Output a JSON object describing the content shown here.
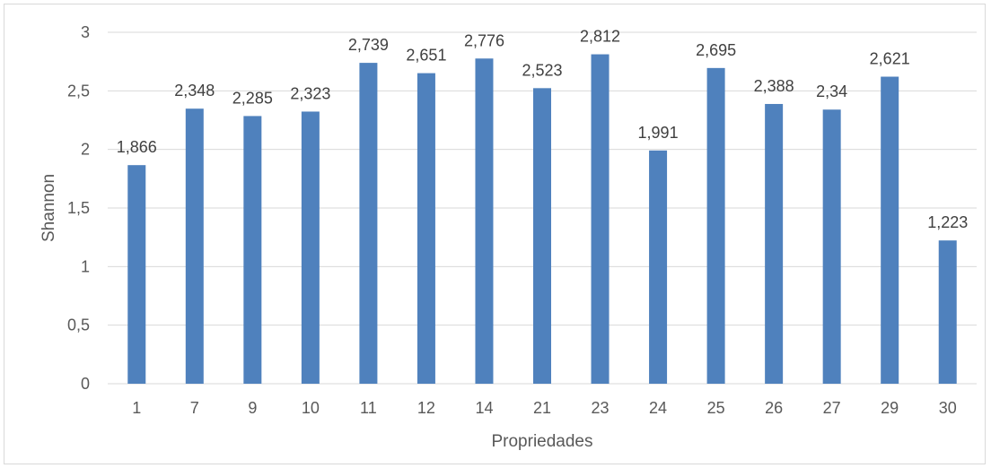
{
  "chart_data": {
    "type": "bar",
    "categories": [
      "1",
      "7",
      "9",
      "10",
      "11",
      "12",
      "14",
      "21",
      "23",
      "24",
      "25",
      "26",
      "27",
      "29",
      "30"
    ],
    "series": [
      {
        "values": [
          1.866,
          2.348,
          2.285,
          2.323,
          2.739,
          2.651,
          2.776,
          2.523,
          2.812,
          1.991,
          2.695,
          2.388,
          2.34,
          2.621,
          1.223
        ],
        "labels": [
          "1,866",
          "2,348",
          "2,285",
          "2,323",
          "2,739",
          "2,651",
          "2,776",
          "2,523",
          "2,812",
          "1,991",
          "2,695",
          "2,388",
          "2,34",
          "2,621",
          "1,223"
        ],
        "color": "#4f81bd"
      }
    ],
    "xlabel": "Propriedades",
    "ylabel": "Shannon",
    "ylim": [
      0,
      3
    ],
    "yticks": [
      {
        "value": 0,
        "label": "0"
      },
      {
        "value": 0.5,
        "label": "0,5"
      },
      {
        "value": 1,
        "label": "1"
      },
      {
        "value": 1.5,
        "label": "1,5"
      },
      {
        "value": 2,
        "label": "2"
      },
      {
        "value": 2.5,
        "label": "2,5"
      },
      {
        "value": 3,
        "label": "3"
      }
    ],
    "grid": true,
    "legend": "none"
  }
}
